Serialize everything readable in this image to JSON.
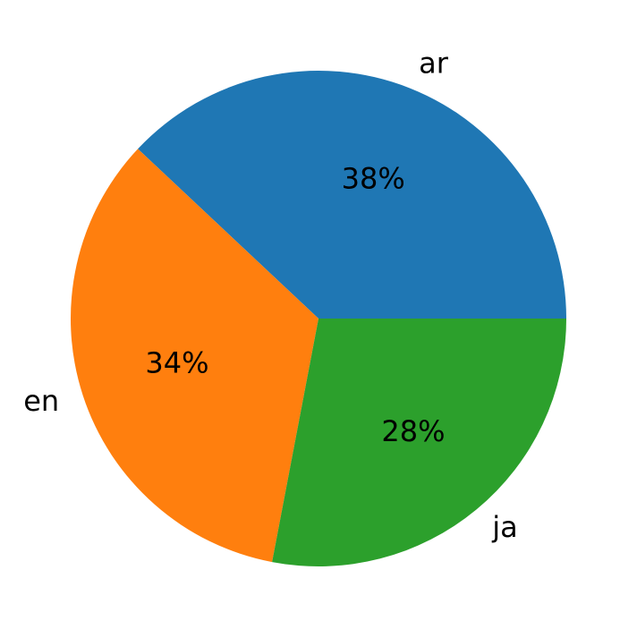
{
  "chart_data": {
    "type": "pie",
    "categories": [
      "ar",
      "en",
      "ja"
    ],
    "values": [
      38,
      34,
      28
    ],
    "value_labels": [
      "38%",
      "34%",
      "28%"
    ],
    "colors": [
      "#1f77b4",
      "#ff7f0e",
      "#2ca02c"
    ]
  }
}
